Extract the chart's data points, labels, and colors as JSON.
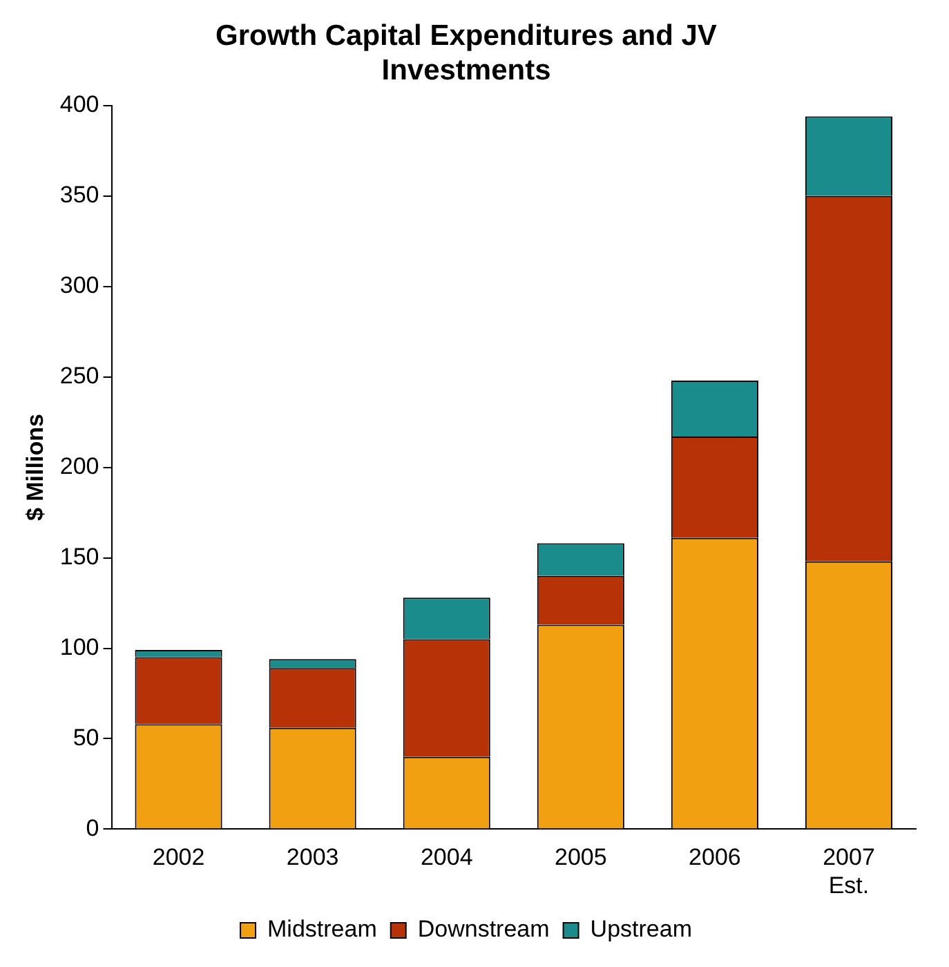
{
  "chart_data": {
    "type": "bar",
    "title": "Growth Capital Expenditures and JV Investments",
    "ylabel": "$ Millions",
    "categories": [
      "2002",
      "2003",
      "2004",
      "2005",
      "2006",
      "2007\nEst."
    ],
    "series": [
      {
        "name": "Midstream",
        "color": "#f0a010",
        "values": [
          58,
          56,
          40,
          113,
          161,
          148
        ]
      },
      {
        "name": "Downstream",
        "color": "#b83208",
        "values": [
          37,
          33,
          65,
          27,
          56,
          202
        ]
      },
      {
        "name": "Upstream",
        "color": "#1a8c8c",
        "values": [
          4,
          5,
          23,
          18,
          31,
          44
        ]
      }
    ],
    "stacked": true,
    "ylim": [
      0,
      400
    ],
    "yticks": [
      0,
      50,
      100,
      150,
      200,
      250,
      300,
      350,
      400
    ],
    "grid": false,
    "legend": "bottom"
  }
}
